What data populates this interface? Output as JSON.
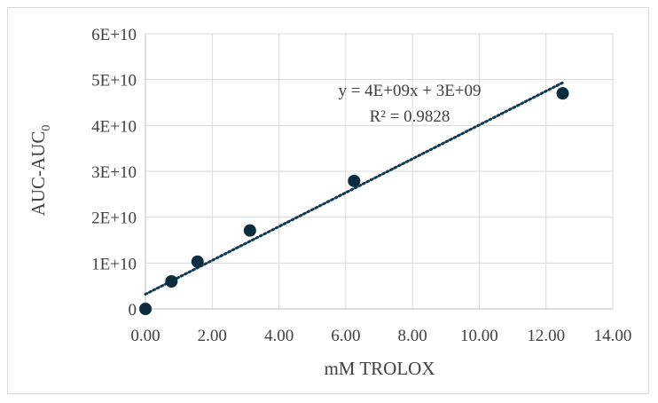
{
  "chart_data": {
    "type": "scatter",
    "xlabel": "mM TROLOX",
    "ylabel": {
      "main": "AUC-AUC",
      "subscript": "0"
    },
    "xlim": [
      0,
      14
    ],
    "ylim": [
      0,
      60000000000
    ],
    "x_ticks": [
      "0.00",
      "2.00",
      "4.00",
      "6.00",
      "8.00",
      "10.00",
      "12.00",
      "14.00"
    ],
    "y_ticks": [
      "0",
      "1E+10",
      "2E+10",
      "3E+10",
      "4E+10",
      "5E+10",
      "6E+10"
    ],
    "grid": true,
    "legend": "none",
    "marker_color": "#0d2c40",
    "series": [
      {
        "x": [
          0,
          0.78,
          1.56,
          3.13,
          6.25,
          12.5
        ],
        "y": [
          0,
          6000000000,
          10300000000,
          17100000000,
          27900000000,
          47000000000
        ]
      }
    ],
    "trendline": {
      "type": "linear",
      "slope": 3690000000,
      "intercept": 3200000000,
      "x_range": [
        0,
        12.5
      ],
      "style": "dotted",
      "color": "#0d3a52"
    },
    "annotations": [
      "y = 4E+09x + 3E+09",
      "R² = 0.9828"
    ]
  }
}
